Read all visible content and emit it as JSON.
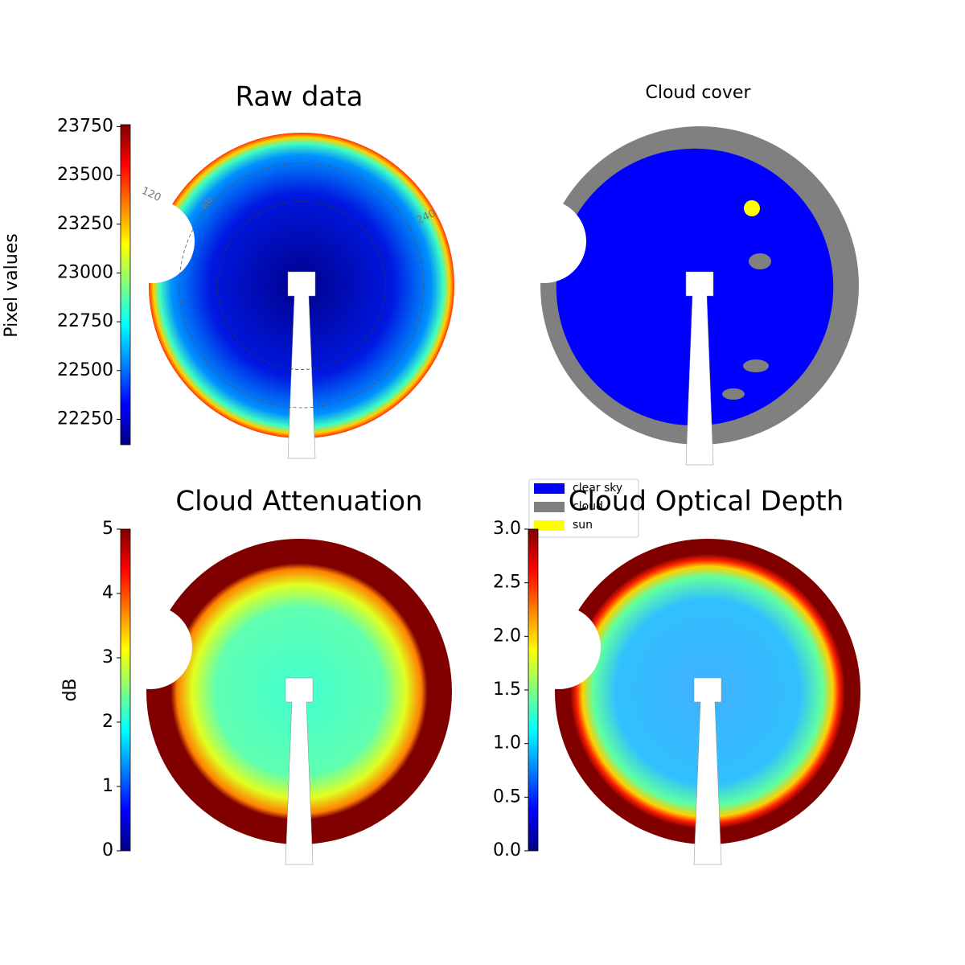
{
  "chart_data": [
    {
      "type": "image",
      "title": "Raw data",
      "colorbar": {
        "label": "Pixel values",
        "colormap": "jet",
        "lim": [
          22120,
          23760
        ],
        "ticks": [
          22250,
          22500,
          22750,
          23000,
          23250,
          23500,
          23750
        ]
      },
      "annotations": [
        "120",
        "60",
        "240"
      ]
    },
    {
      "type": "image",
      "title": "Cloud cover",
      "legend": [
        {
          "name": "clear sky",
          "color": "#0000ff"
        },
        {
          "name": "cloud",
          "color": "#808080"
        },
        {
          "name": "sun",
          "color": "#ffff00"
        }
      ]
    },
    {
      "type": "image",
      "title": "Cloud Attenuation",
      "colorbar": {
        "label": "dB",
        "colormap": "jet",
        "lim": [
          0,
          5
        ],
        "ticks": [
          0,
          1,
          2,
          3,
          4,
          5
        ]
      }
    },
    {
      "type": "image",
      "title": "Cloud Optical Depth",
      "colorbar": {
        "colormap": "jet",
        "lim": [
          0,
          3
        ],
        "ticks": [
          {
            "value": 0,
            "label": "0.0"
          },
          {
            "value": 0.5,
            "label": "0.5"
          },
          {
            "value": 1,
            "label": "1.0"
          },
          {
            "value": 1.5,
            "label": "1.5"
          },
          {
            "value": 2,
            "label": "2.0"
          },
          {
            "value": 2.5,
            "label": "2.5"
          },
          {
            "value": 3,
            "label": "3.0"
          }
        ]
      }
    }
  ]
}
